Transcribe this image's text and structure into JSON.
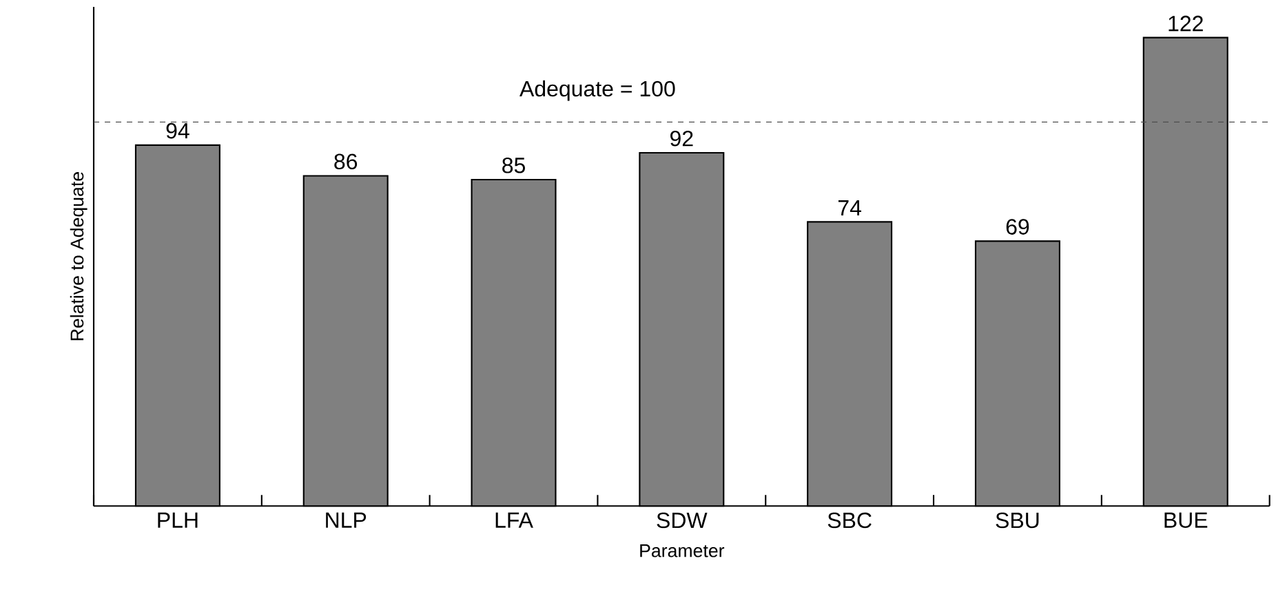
{
  "chart_data": {
    "type": "bar",
    "xlabel": "Parameter",
    "ylabel": "Relative to Adequate",
    "categories": [
      "PLH",
      "NLP",
      "LFA",
      "SDW",
      "SBC",
      "SBU",
      "BUE"
    ],
    "values": [
      94,
      86,
      85,
      92,
      74,
      69,
      122
    ],
    "color": "#808080",
    "ylim": [
      0,
      130
    ],
    "data_labels": true,
    "tick_labels": "x",
    "ref_lines": [
      {
        "axis": "y",
        "value": 100,
        "label": "Adequate = 100",
        "line_style": "dashed"
      }
    ]
  }
}
